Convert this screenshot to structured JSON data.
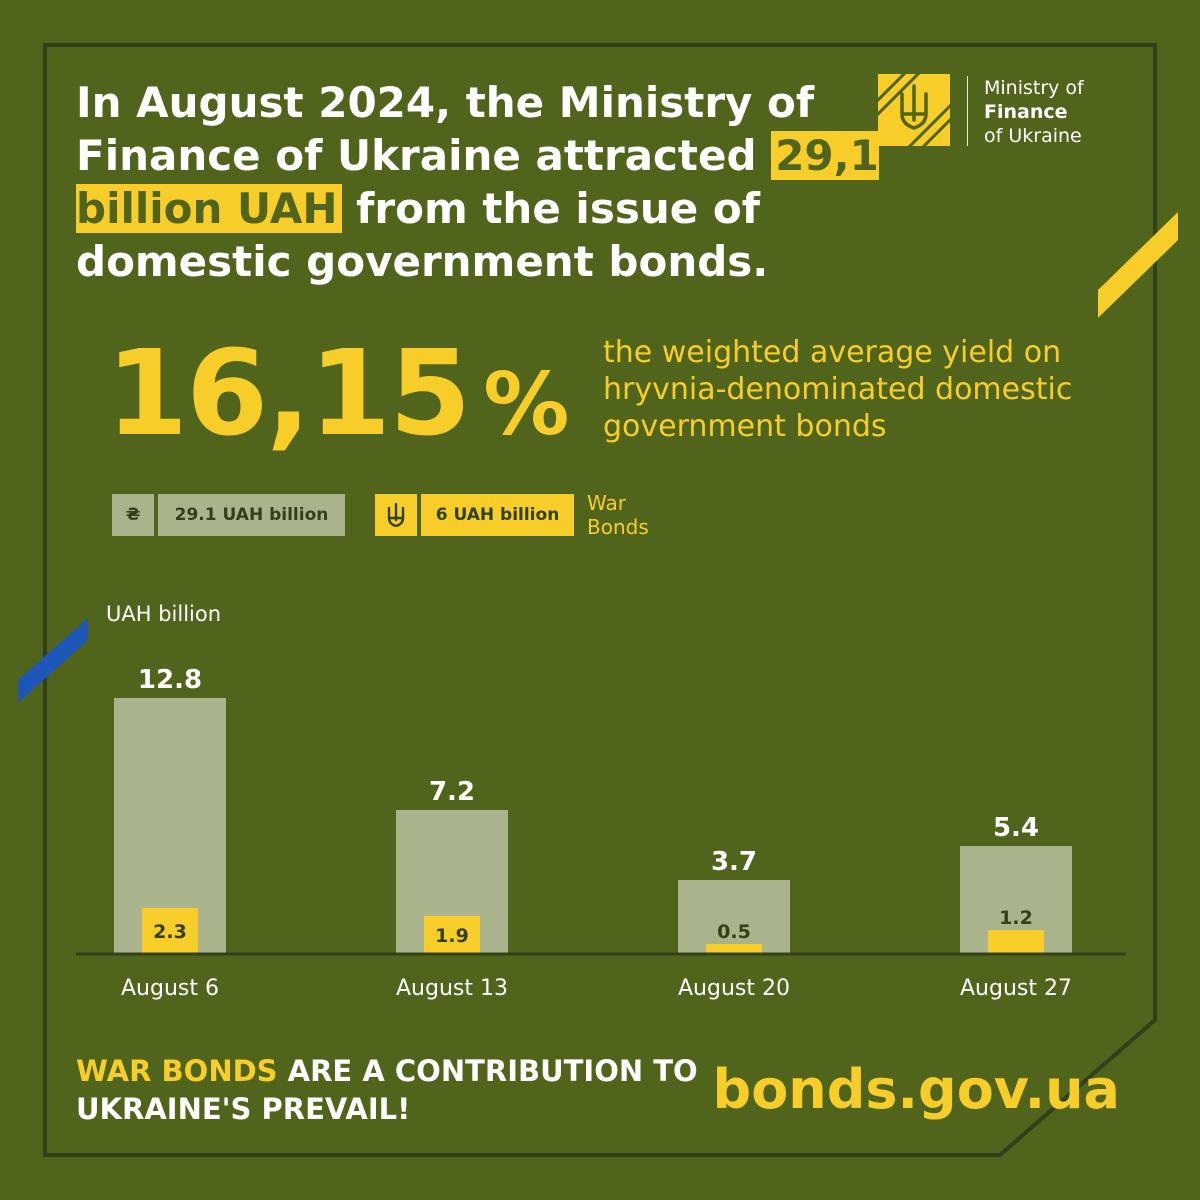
{
  "headline": {
    "part1": "In August 2024, the Ministry of Finance of Ukraine attracted",
    "highlight": "29,1 billion UAH",
    "part2": "from the issue of domestic government bonds."
  },
  "logo": {
    "line1": "Ministry of",
    "line2": "Finance",
    "line3": "of Ukraine"
  },
  "yield": {
    "value": "16,15",
    "unit": "%",
    "description": "the weighted average yield on hryvnia-denominated domestic government bonds"
  },
  "legend": {
    "total_icon": "₴",
    "total_label": "29.1 UAH billion",
    "war_icon_name": "trident-icon",
    "war_label": "6 UAH billion",
    "war_text": "War Bonds"
  },
  "footer": {
    "slogan_accent": "WAR BONDS",
    "slogan_rest": "ARE A CONTRIBUTION TO UKRAINE'S PREVAIL!",
    "site": "bonds.gov.ua"
  },
  "colors": {
    "background": "#50641c",
    "accent_yellow": "#f7cd2a",
    "total_bar": "#a9b48d",
    "baseline": "#33401a",
    "blue_stripe": "#1d57b8"
  },
  "chart_data": {
    "type": "bar",
    "ylabel": "UAH billion",
    "categories": [
      "August 6",
      "August 13",
      "August 20",
      "August 27"
    ],
    "series": [
      {
        "name": "",
        "values": [
          12.8,
          7.2,
          3.7,
          5.4
        ]
      },
      {
        "name": "War Bonds",
        "values": [
          2.3,
          1.9,
          0.5,
          1.2
        ]
      }
    ],
    "value_labels_total": [
      "12.8",
      "7.2",
      "3.7",
      "5.4"
    ],
    "value_labels_war": [
      "2.3",
      "1.9",
      "0.5",
      "1.2"
    ],
    "ylim": [
      0,
      12.8
    ],
    "grid": false
  }
}
